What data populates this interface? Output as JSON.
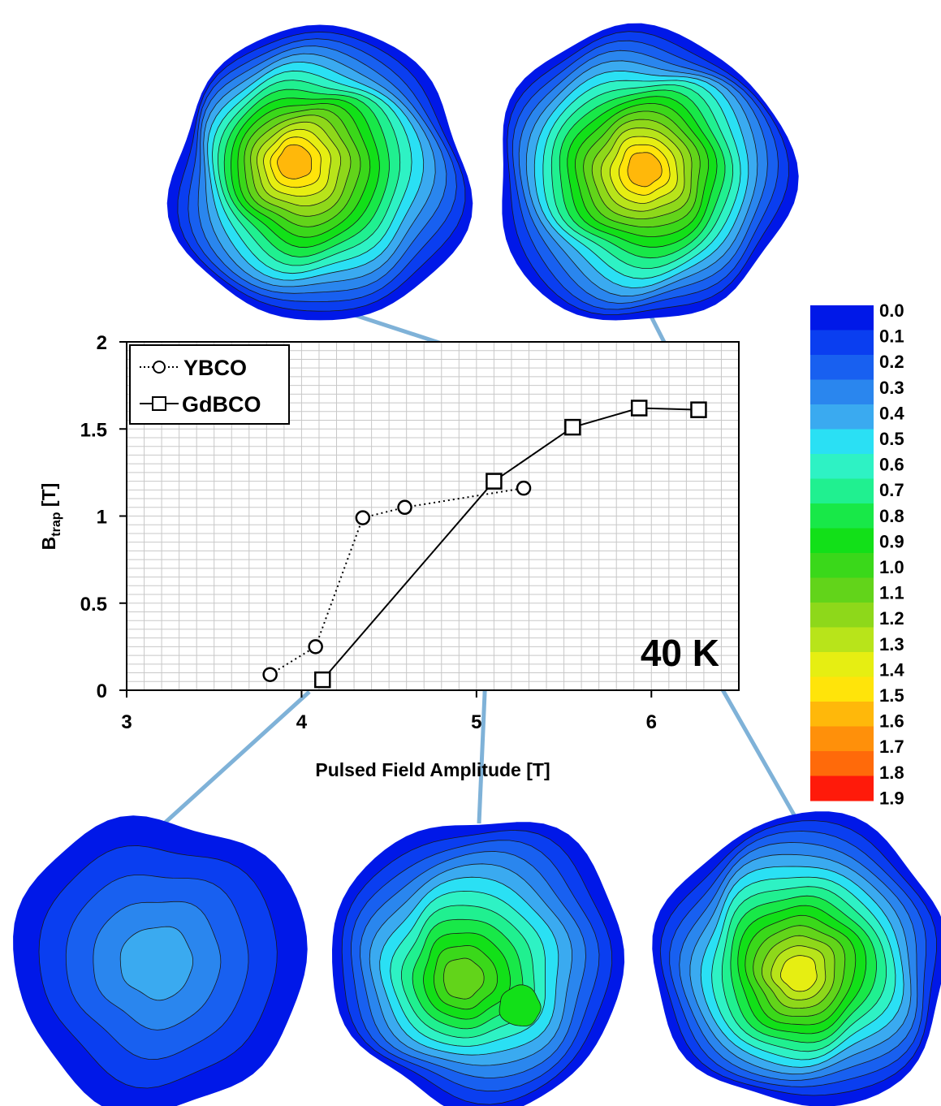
{
  "chart_data": {
    "type": "line",
    "xlabel": "Pulsed Field Amplitude [T]",
    "ylabel_main": "B",
    "ylabel_sub": "trap",
    "ylabel_unit": " [T]",
    "xlim": [
      3,
      6.5
    ],
    "ylim": [
      0,
      2
    ],
    "xticks": [
      "3",
      "4",
      "5",
      "6"
    ],
    "yticks": [
      "0",
      "0.5",
      "1",
      "1.5",
      "2"
    ],
    "grid": true,
    "legend_position": "top-left",
    "annotation": "40 K",
    "series": [
      {
        "name": "YBCO",
        "marker": "circle",
        "line": "dotted",
        "color": "#000000",
        "x": [
          3.82,
          4.08,
          4.35,
          4.59,
          5.27
        ],
        "y": [
          0.09,
          0.25,
          0.99,
          1.05,
          1.16
        ]
      },
      {
        "name": "GdBCO",
        "marker": "square",
        "line": "solid",
        "color": "#000000",
        "x": [
          4.12,
          5.1,
          5.55,
          5.93,
          6.27
        ],
        "y": [
          0.06,
          1.2,
          1.51,
          1.62,
          1.61
        ]
      }
    ]
  },
  "colorbar": {
    "labels": [
      "0.0",
      "0.1",
      "0.2",
      "0.3",
      "0.4",
      "0.5",
      "0.6",
      "0.7",
      "0.8",
      "0.9",
      "1.0",
      "1.1",
      "1.2",
      "1.3",
      "1.4",
      "1.5",
      "1.6",
      "1.7",
      "1.8",
      "1.9"
    ],
    "colors": [
      "#0018e8",
      "#0a3ef0",
      "#1860f0",
      "#2a86ee",
      "#3aaaf0",
      "#2ae0f4",
      "#2ef2c4",
      "#20f090",
      "#18e848",
      "#12e018",
      "#3ad81a",
      "#62d41a",
      "#8ed81a",
      "#b8e41a",
      "#e6ee12",
      "#ffe40a",
      "#ffb80a",
      "#ff900a",
      "#ff6a0a",
      "#ff1a0a"
    ]
  },
  "field_maps": [
    {
      "linked_series": "GdBCO",
      "linked_index": 3,
      "levels": 17,
      "peak_offset": [
        -0.18,
        -0.1
      ],
      "secondary": null
    },
    {
      "linked_series": "GdBCO",
      "linked_index": 4,
      "levels": 17,
      "peak_offset": [
        0.02,
        -0.05
      ],
      "secondary": null
    },
    {
      "linked_series": "GdBCO",
      "linked_index": 0,
      "levels": 5,
      "peak_offset": [
        -0.02,
        0.0
      ],
      "secondary": null
    },
    {
      "linked_series": "GdBCO",
      "linked_index": 1,
      "levels": 12,
      "peak_offset": [
        -0.12,
        0.12
      ],
      "secondary": [
        0.28,
        0.3,
        9
      ]
    },
    {
      "linked_series": "GdBCO",
      "linked_index": 2,
      "levels": 15,
      "peak_offset": [
        -0.02,
        0.08
      ],
      "secondary": [
        0.2,
        0.15,
        10
      ]
    }
  ]
}
